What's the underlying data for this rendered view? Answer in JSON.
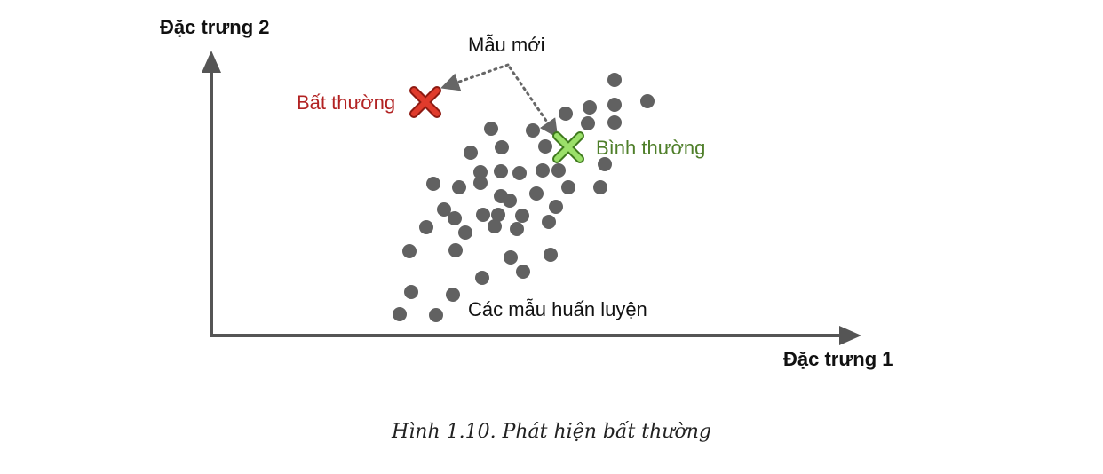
{
  "labels": {
    "y_axis": "Đặc trưng 2",
    "x_axis": "Đặc trưng 1",
    "new_sample": "Mẫu mới",
    "anomaly": "Bất thường",
    "normal": "Bình thường",
    "training": "Các mẫu huấn luyện"
  },
  "caption": "Hình 1.10. Phát hiện bất thường",
  "colors": {
    "axis": "#555555",
    "dots": "#616161",
    "anomaly": "#b22222",
    "anomaly_fill": "#e03b2c",
    "normal": "#4f7f2a",
    "normal_fill": "#9be06a"
  },
  "icons": {
    "anomaly_marker": "red-x-icon",
    "normal_marker": "green-x-icon"
  }
}
